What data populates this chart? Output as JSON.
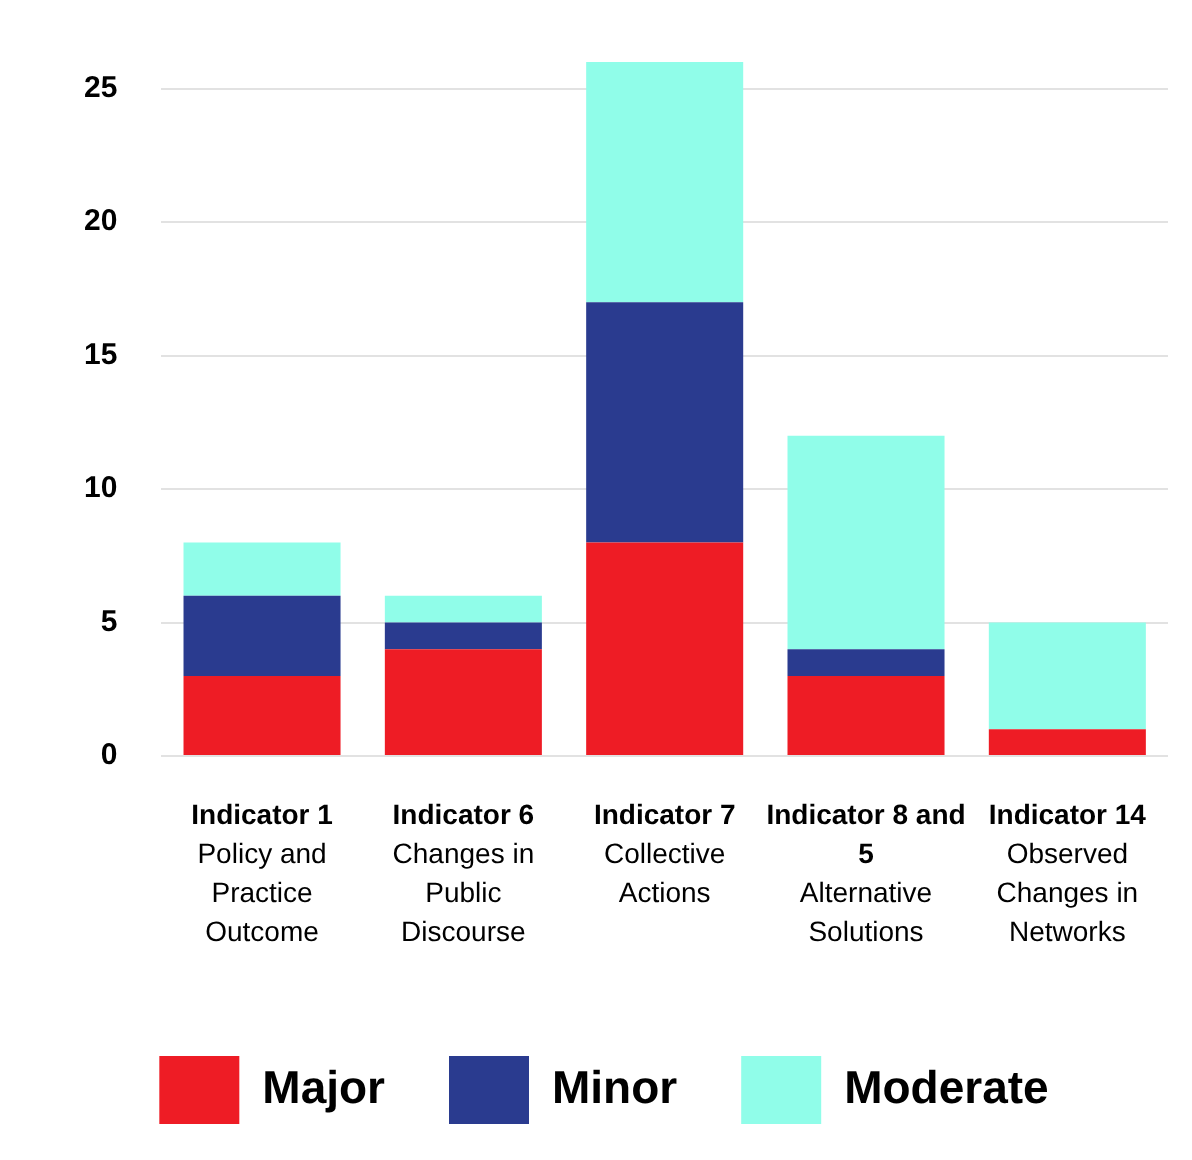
{
  "chart_data": {
    "type": "bar",
    "stacked": true,
    "categories": [
      "Indicator 1\nPolicy and Practice Outcome",
      "Indicator 6\nChanges in Public Discourse",
      "Indicator 7\nCollective Actions",
      "Indicator 8 and 5\nAlternative Solutions",
      "Indicator 14\nObserved Changes in Networks"
    ],
    "series": [
      {
        "name": "Major",
        "color": "#ee1c25",
        "values": [
          3,
          4,
          8,
          3,
          1
        ]
      },
      {
        "name": "Minor",
        "color": "#2a3b8f",
        "values": [
          3,
          1,
          9,
          1,
          0
        ]
      },
      {
        "name": "Moderate",
        "color": "#90fde9",
        "values": [
          2,
          1,
          9,
          8,
          4
        ]
      }
    ],
    "ylim": [
      0,
      26
    ],
    "yticks": [
      0,
      5,
      10,
      15,
      20,
      25
    ],
    "grid": "y",
    "legend": "bottom"
  }
}
